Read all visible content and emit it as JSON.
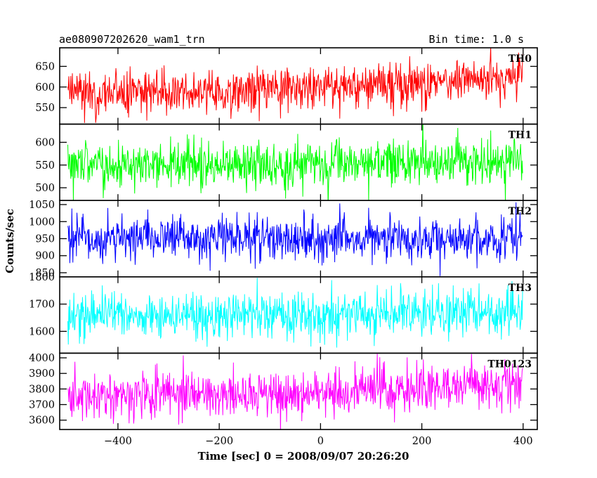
{
  "header": {
    "title": "ae080907202620_wam1_trn",
    "bin_time": "Bin time: 1.0 s"
  },
  "chart_data": {
    "type": "line",
    "xlabel": "Time [sec] 0 = 2008/09/07 20:26:20",
    "ylabel": "Counts/sec",
    "xlim": [
      -515,
      428
    ],
    "x_ticks": [
      -400,
      -200,
      0,
      200,
      400
    ],
    "x_range": [
      -499,
      399
    ],
    "bin_time_s": 1.0,
    "panels": [
      {
        "name": "TH0",
        "color": "#ff0000",
        "ylim": [
          510,
          695
        ],
        "y_ticks": [
          550,
          600,
          650
        ],
        "mean_profile": [
          [
            -499,
            587
          ],
          [
            -300,
            585
          ],
          [
            -100,
            592
          ],
          [
            100,
            605
          ],
          [
            200,
            612
          ],
          [
            399,
            625
          ]
        ],
        "noise_sd": 26
      },
      {
        "name": "TH1",
        "color": "#00ff00",
        "ylim": [
          472,
          640
        ],
        "y_ticks": [
          500,
          550,
          600
        ],
        "mean_profile": [
          [
            -499,
            552
          ],
          [
            0,
            552
          ],
          [
            399,
            556
          ]
        ],
        "noise_sd": 25
      },
      {
        "name": "TH2",
        "color": "#0000ff",
        "ylim": [
          838,
          1062
        ],
        "y_ticks": [
          850,
          900,
          950,
          1000,
          1050
        ],
        "mean_profile": [
          [
            -499,
            955
          ],
          [
            0,
            948
          ],
          [
            399,
            950
          ]
        ],
        "noise_sd": 33
      },
      {
        "name": "TH3",
        "color": "#00ffff",
        "ylim": [
          1520,
          1800
        ],
        "y_ticks": [
          1600,
          1700,
          1800
        ],
        "mean_profile": [
          [
            -499,
            1660
          ],
          [
            0,
            1658
          ],
          [
            399,
            1672
          ]
        ],
        "noise_sd": 42
      },
      {
        "name": "TH0123",
        "color": "#ff00ff",
        "ylim": [
          3540,
          4030
        ],
        "y_ticks": [
          3600,
          3700,
          3800,
          3900,
          4000
        ],
        "mean_profile": [
          [
            -499,
            3755
          ],
          [
            -200,
            3760
          ],
          [
            0,
            3775
          ],
          [
            200,
            3800
          ],
          [
            399,
            3830
          ]
        ],
        "noise_sd": 75
      }
    ]
  }
}
